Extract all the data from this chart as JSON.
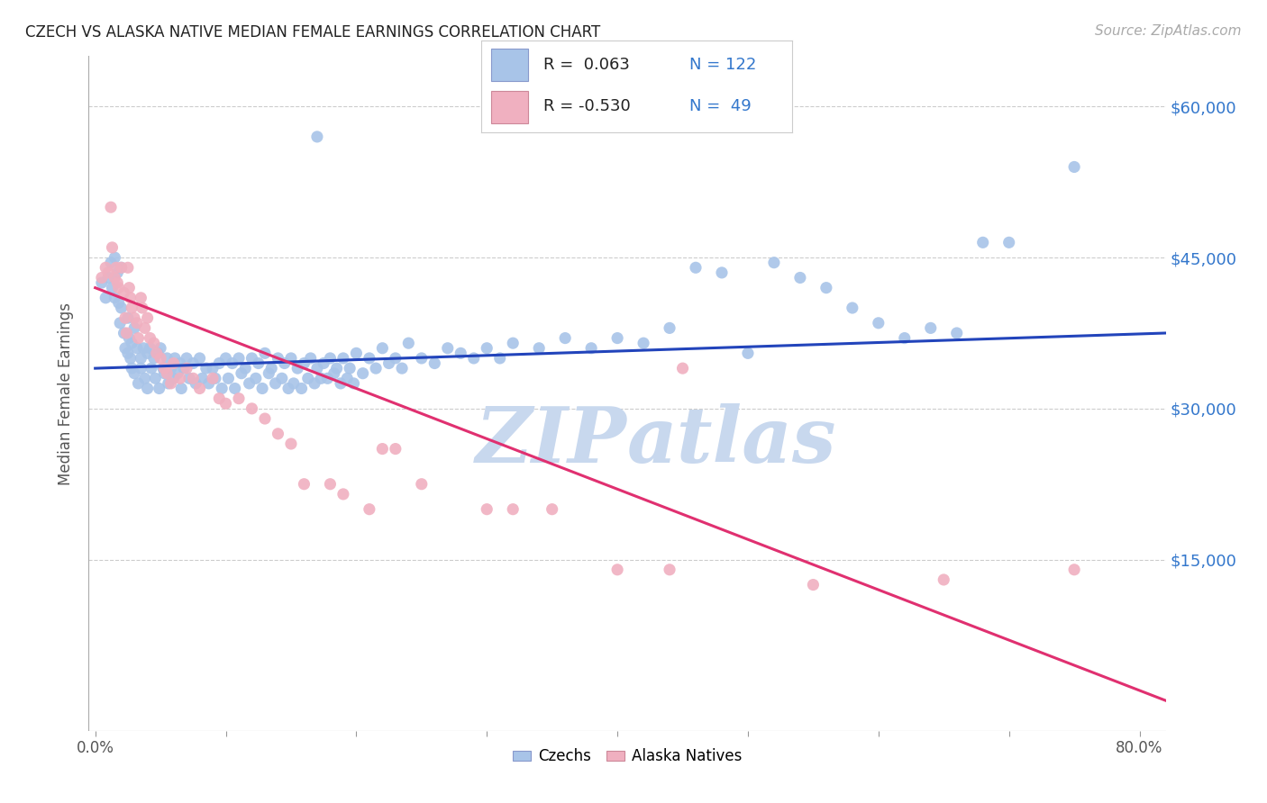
{
  "title": "CZECH VS ALASKA NATIVE MEDIAN FEMALE EARNINGS CORRELATION CHART",
  "source": "Source: ZipAtlas.com",
  "ylabel": "Median Female Earnings",
  "ylabel_ticks": [
    "$60,000",
    "$45,000",
    "$30,000",
    "$15,000"
  ],
  "ylabel_tick_vals": [
    60000,
    45000,
    30000,
    15000
  ],
  "ylim": [
    -2000,
    65000
  ],
  "xlim": [
    -0.005,
    0.82
  ],
  "blue_color": "#a8c4e8",
  "pink_color": "#f0b0c0",
  "line_blue": "#2244bb",
  "line_pink": "#e03070",
  "title_color": "#222222",
  "axis_label_color": "#555555",
  "tick_label_color_right": "#3377cc",
  "background_color": "#ffffff",
  "grid_color": "#cccccc",
  "watermark_color": "#c8d8ee",
  "czechs_blue_scatter": [
    [
      0.005,
      42500
    ],
    [
      0.008,
      41000
    ],
    [
      0.01,
      43000
    ],
    [
      0.012,
      44500
    ],
    [
      0.013,
      42000
    ],
    [
      0.015,
      45000
    ],
    [
      0.015,
      41000
    ],
    [
      0.017,
      43500
    ],
    [
      0.018,
      40500
    ],
    [
      0.019,
      38500
    ],
    [
      0.02,
      44000
    ],
    [
      0.02,
      40000
    ],
    [
      0.022,
      37500
    ],
    [
      0.023,
      36000
    ],
    [
      0.025,
      39000
    ],
    [
      0.025,
      35500
    ],
    [
      0.026,
      37000
    ],
    [
      0.027,
      35000
    ],
    [
      0.028,
      36500
    ],
    [
      0.028,
      34000
    ],
    [
      0.03,
      38000
    ],
    [
      0.03,
      33500
    ],
    [
      0.032,
      36000
    ],
    [
      0.033,
      32500
    ],
    [
      0.035,
      35000
    ],
    [
      0.035,
      34000
    ],
    [
      0.037,
      36000
    ],
    [
      0.038,
      33000
    ],
    [
      0.04,
      35500
    ],
    [
      0.04,
      32000
    ],
    [
      0.042,
      36000
    ],
    [
      0.043,
      34000
    ],
    [
      0.045,
      35000
    ],
    [
      0.046,
      33000
    ],
    [
      0.048,
      35500
    ],
    [
      0.049,
      32000
    ],
    [
      0.05,
      36000
    ],
    [
      0.052,
      34000
    ],
    [
      0.053,
      33500
    ],
    [
      0.055,
      35000
    ],
    [
      0.056,
      32500
    ],
    [
      0.058,
      34000
    ],
    [
      0.06,
      33000
    ],
    [
      0.061,
      35000
    ],
    [
      0.063,
      33500
    ],
    [
      0.065,
      34500
    ],
    [
      0.066,
      32000
    ],
    [
      0.068,
      34000
    ],
    [
      0.07,
      35000
    ],
    [
      0.072,
      33000
    ],
    [
      0.075,
      34500
    ],
    [
      0.077,
      32500
    ],
    [
      0.08,
      35000
    ],
    [
      0.082,
      33000
    ],
    [
      0.085,
      34000
    ],
    [
      0.087,
      32500
    ],
    [
      0.09,
      34000
    ],
    [
      0.092,
      33000
    ],
    [
      0.095,
      34500
    ],
    [
      0.097,
      32000
    ],
    [
      0.1,
      35000
    ],
    [
      0.102,
      33000
    ],
    [
      0.105,
      34500
    ],
    [
      0.107,
      32000
    ],
    [
      0.11,
      35000
    ],
    [
      0.112,
      33500
    ],
    [
      0.115,
      34000
    ],
    [
      0.118,
      32500
    ],
    [
      0.12,
      35000
    ],
    [
      0.123,
      33000
    ],
    [
      0.125,
      34500
    ],
    [
      0.128,
      32000
    ],
    [
      0.13,
      35500
    ],
    [
      0.133,
      33500
    ],
    [
      0.135,
      34000
    ],
    [
      0.138,
      32500
    ],
    [
      0.14,
      35000
    ],
    [
      0.143,
      33000
    ],
    [
      0.145,
      34500
    ],
    [
      0.148,
      32000
    ],
    [
      0.15,
      35000
    ],
    [
      0.152,
      32500
    ],
    [
      0.155,
      34000
    ],
    [
      0.158,
      32000
    ],
    [
      0.16,
      34500
    ],
    [
      0.163,
      33000
    ],
    [
      0.165,
      35000
    ],
    [
      0.168,
      32500
    ],
    [
      0.17,
      34000
    ],
    [
      0.173,
      33000
    ],
    [
      0.175,
      34500
    ],
    [
      0.178,
      33000
    ],
    [
      0.18,
      35000
    ],
    [
      0.183,
      33500
    ],
    [
      0.185,
      34000
    ],
    [
      0.188,
      32500
    ],
    [
      0.19,
      35000
    ],
    [
      0.193,
      33000
    ],
    [
      0.195,
      34000
    ],
    [
      0.198,
      32500
    ],
    [
      0.2,
      35500
    ],
    [
      0.205,
      33500
    ],
    [
      0.21,
      35000
    ],
    [
      0.215,
      34000
    ],
    [
      0.22,
      36000
    ],
    [
      0.225,
      34500
    ],
    [
      0.23,
      35000
    ],
    [
      0.235,
      34000
    ],
    [
      0.24,
      36500
    ],
    [
      0.25,
      35000
    ],
    [
      0.26,
      34500
    ],
    [
      0.27,
      36000
    ],
    [
      0.28,
      35500
    ],
    [
      0.29,
      35000
    ],
    [
      0.3,
      36000
    ],
    [
      0.31,
      35000
    ],
    [
      0.32,
      36500
    ],
    [
      0.34,
      36000
    ],
    [
      0.36,
      37000
    ],
    [
      0.38,
      36000
    ],
    [
      0.4,
      37000
    ],
    [
      0.42,
      36500
    ],
    [
      0.44,
      38000
    ],
    [
      0.46,
      44000
    ],
    [
      0.48,
      43500
    ],
    [
      0.5,
      35500
    ],
    [
      0.52,
      44500
    ],
    [
      0.54,
      43000
    ],
    [
      0.56,
      42000
    ],
    [
      0.58,
      40000
    ],
    [
      0.6,
      38500
    ],
    [
      0.62,
      37000
    ],
    [
      0.64,
      38000
    ],
    [
      0.66,
      37500
    ],
    [
      0.68,
      46500
    ],
    [
      0.7,
      46500
    ],
    [
      0.17,
      57000
    ],
    [
      0.75,
      54000
    ]
  ],
  "alaska_pink_scatter": [
    [
      0.005,
      43000
    ],
    [
      0.008,
      44000
    ],
    [
      0.01,
      43500
    ],
    [
      0.012,
      50000
    ],
    [
      0.013,
      46000
    ],
    [
      0.015,
      43000
    ],
    [
      0.016,
      44000
    ],
    [
      0.017,
      42500
    ],
    [
      0.018,
      42000
    ],
    [
      0.02,
      44000
    ],
    [
      0.022,
      41500
    ],
    [
      0.023,
      39000
    ],
    [
      0.024,
      37500
    ],
    [
      0.025,
      44000
    ],
    [
      0.026,
      42000
    ],
    [
      0.027,
      41000
    ],
    [
      0.028,
      40000
    ],
    [
      0.03,
      39000
    ],
    [
      0.032,
      38500
    ],
    [
      0.033,
      37000
    ],
    [
      0.035,
      41000
    ],
    [
      0.036,
      40000
    ],
    [
      0.038,
      38000
    ],
    [
      0.04,
      39000
    ],
    [
      0.042,
      37000
    ],
    [
      0.045,
      36500
    ],
    [
      0.047,
      35500
    ],
    [
      0.05,
      35000
    ],
    [
      0.053,
      34000
    ],
    [
      0.055,
      33500
    ],
    [
      0.058,
      32500
    ],
    [
      0.06,
      34500
    ],
    [
      0.065,
      33000
    ],
    [
      0.07,
      34000
    ],
    [
      0.075,
      33000
    ],
    [
      0.08,
      32000
    ],
    [
      0.09,
      33000
    ],
    [
      0.095,
      31000
    ],
    [
      0.1,
      30500
    ],
    [
      0.11,
      31000
    ],
    [
      0.12,
      30000
    ],
    [
      0.13,
      29000
    ],
    [
      0.14,
      27500
    ],
    [
      0.15,
      26500
    ],
    [
      0.16,
      22500
    ],
    [
      0.18,
      22500
    ],
    [
      0.19,
      21500
    ],
    [
      0.21,
      20000
    ],
    [
      0.22,
      26000
    ],
    [
      0.23,
      26000
    ],
    [
      0.25,
      22500
    ],
    [
      0.3,
      20000
    ],
    [
      0.32,
      20000
    ],
    [
      0.35,
      20000
    ],
    [
      0.4,
      14000
    ],
    [
      0.44,
      14000
    ],
    [
      0.45,
      34000
    ],
    [
      0.55,
      12500
    ],
    [
      0.65,
      13000
    ],
    [
      0.75,
      14000
    ]
  ],
  "blue_trendline_x": [
    0.0,
    0.82
  ],
  "blue_trendline_y": [
    34000,
    37500
  ],
  "pink_trendline_x": [
    0.0,
    0.82
  ],
  "pink_trendline_y": [
    42000,
    1000
  ]
}
